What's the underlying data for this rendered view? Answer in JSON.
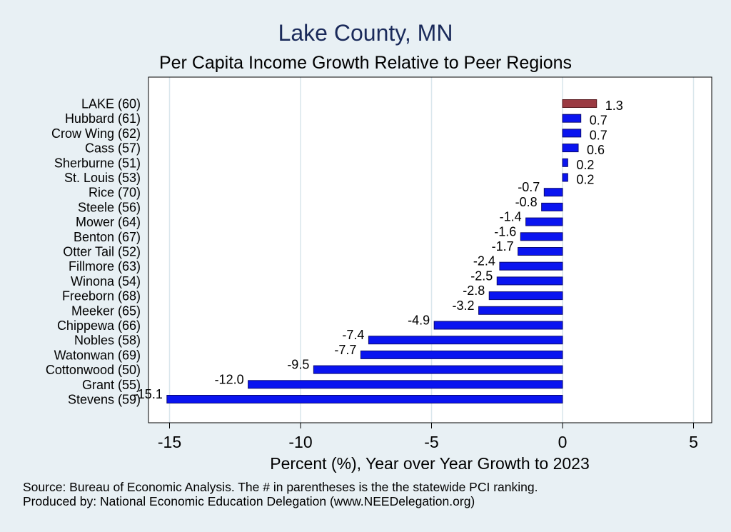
{
  "chart_data": {
    "type": "bar",
    "orientation": "horizontal",
    "title": "Lake County, MN",
    "subtitle": "Per Capita Income Growth Relative to Peer Regions",
    "xlabel": "Percent (%), Year over Year Growth to 2023",
    "ylabel": "",
    "xlim": [
      -16,
      5.8
    ],
    "xticks": [
      -15,
      -10,
      -5,
      0,
      5
    ],
    "xtick_labels": [
      "-15",
      "-10",
      "-5",
      "0",
      "5"
    ],
    "grid": "vertical",
    "categories": [
      "LAKE (60)",
      "Hubbard (61)",
      "Crow Wing (62)",
      "Cass (57)",
      "Sherburne (51)",
      "St. Louis (53)",
      "Rice (70)",
      "Steele (56)",
      "Mower (64)",
      "Benton (67)",
      "Otter Tail (52)",
      "Fillmore (63)",
      "Winona (54)",
      "Freeborn (68)",
      "Meeker (65)",
      "Chippewa (66)",
      "Nobles (58)",
      "Watonwan (69)",
      "Cottonwood (50)",
      "Grant (55)",
      "Stevens (59)"
    ],
    "values": [
      1.3,
      0.7,
      0.7,
      0.6,
      0.2,
      0.2,
      -0.7,
      -0.8,
      -1.4,
      -1.6,
      -1.7,
      -2.4,
      -2.5,
      -2.8,
      -3.2,
      -4.9,
      -7.4,
      -7.7,
      -9.5,
      -12.0,
      -15.1
    ],
    "value_labels": [
      "1.3",
      "0.7",
      "0.7",
      "0.6",
      "0.2",
      "0.2",
      "-0.7",
      "-0.8",
      "-1.4",
      "-1.6",
      "-1.7",
      "-2.4",
      "-2.5",
      "-2.8",
      "-3.2",
      "-4.9",
      "-7.4",
      "-7.7",
      "-9.5",
      "-12.0",
      "-15.1"
    ],
    "highlight_index": 0,
    "colors": {
      "highlight": "#9b3a42",
      "bar": "#0a14f0",
      "bar_edge": "#0a0a70",
      "plot_bg": "#ffffff",
      "grid": "#d9e6ec",
      "page_bg": "#e8f0f4",
      "title": "#1a2a5a"
    }
  },
  "footer": {
    "source": "Source: Bureau of Economic Analysis. The # in parentheses is the the statewide PCI ranking.",
    "produced_by": "Produced by: National Economic Education Delegation (www.NEEDelegation.org)"
  }
}
